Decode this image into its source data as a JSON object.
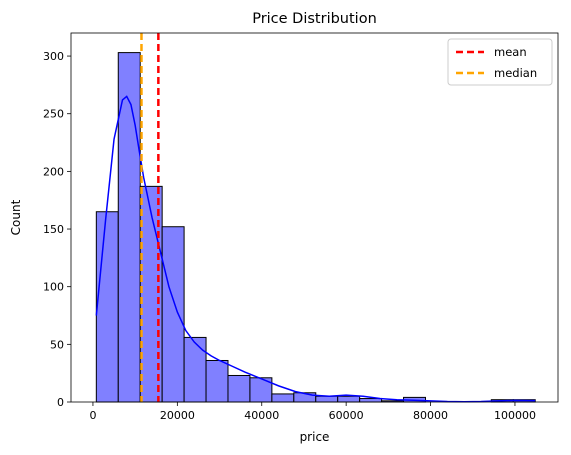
{
  "chart_data": {
    "type": "histogram",
    "title": "Price Distribution",
    "xlabel": "price",
    "ylabel": "Count",
    "xlim": [
      -5200,
      110200
    ],
    "ylim": [
      0,
      320
    ],
    "xticks": [
      0,
      20000,
      40000,
      60000,
      80000,
      100000
    ],
    "yticks": [
      0,
      50,
      100,
      150,
      200,
      250,
      300
    ],
    "bins": [
      {
        "x0": 800,
        "x1": 6000,
        "count": 165
      },
      {
        "x0": 6000,
        "x1": 11200,
        "count": 303
      },
      {
        "x0": 11200,
        "x1": 16400,
        "count": 187
      },
      {
        "x0": 16400,
        "x1": 21600,
        "count": 152
      },
      {
        "x0": 21600,
        "x1": 26800,
        "count": 56
      },
      {
        "x0": 26800,
        "x1": 32000,
        "count": 36
      },
      {
        "x0": 32000,
        "x1": 37200,
        "count": 23
      },
      {
        "x0": 37200,
        "x1": 42400,
        "count": 21
      },
      {
        "x0": 42400,
        "x1": 47600,
        "count": 7
      },
      {
        "x0": 47600,
        "x1": 52800,
        "count": 8
      },
      {
        "x0": 52800,
        "x1": 58000,
        "count": 5
      },
      {
        "x0": 58000,
        "x1": 63200,
        "count": 5
      },
      {
        "x0": 63200,
        "x1": 68400,
        "count": 3
      },
      {
        "x0": 68400,
        "x1": 73600,
        "count": 1
      },
      {
        "x0": 73600,
        "x1": 78800,
        "count": 4
      },
      {
        "x0": 78800,
        "x1": 84000,
        "count": 0
      },
      {
        "x0": 84000,
        "x1": 89200,
        "count": 0
      },
      {
        "x0": 89200,
        "x1": 94400,
        "count": 0
      },
      {
        "x0": 94400,
        "x1": 99600,
        "count": 2
      },
      {
        "x0": 99600,
        "x1": 104800,
        "count": 2
      }
    ],
    "kde": {
      "x": [
        800,
        3000,
        5000,
        7000,
        8000,
        9000,
        10000,
        11000,
        12000,
        14000,
        16000,
        18000,
        20000,
        22000,
        24000,
        26000,
        28000,
        30000,
        33000,
        36000,
        40000,
        44000,
        48000,
        52000,
        56000,
        60000,
        64000,
        68000,
        72000,
        76000,
        80000,
        84000,
        88000,
        92000,
        96000,
        100000,
        104800
      ],
      "y": [
        75,
        158,
        228,
        262,
        265,
        258,
        240,
        217,
        195,
        160,
        130,
        100,
        78,
        62,
        52,
        45,
        40,
        36,
        31,
        26,
        20,
        14,
        9,
        6,
        5,
        6,
        5,
        3,
        2,
        1.5,
        1,
        0.4,
        0.2,
        0.4,
        1,
        1.4,
        1.2
      ]
    },
    "lines": [
      {
        "name": "mean",
        "x": 15500,
        "color": "#ff0000"
      },
      {
        "name": "median",
        "x": 11500,
        "color": "#ffa500"
      }
    ],
    "bar_fill": "#8080ff",
    "bar_edge": "#000000",
    "kde_color": "#0000ff",
    "legend_position": "top-right",
    "grid": false
  }
}
